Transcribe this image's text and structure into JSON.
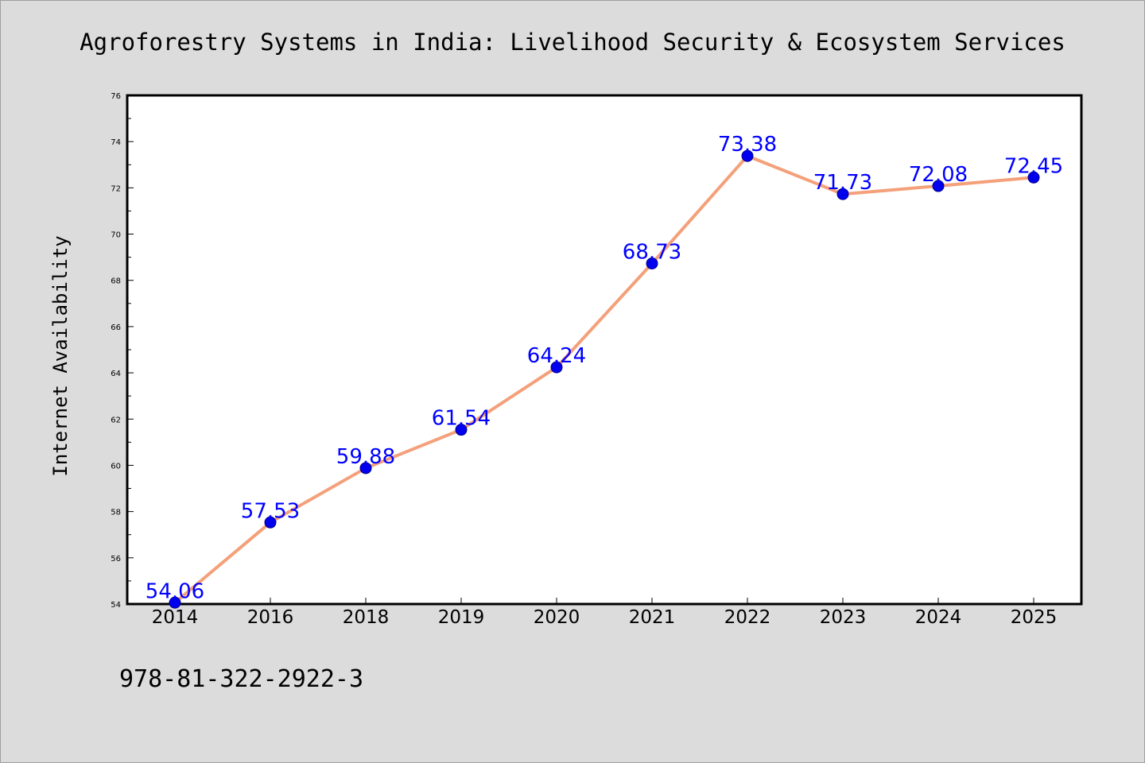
{
  "chart_data": {
    "type": "line",
    "title": "Agroforestry Systems in India: Livelihood Security & Ecosystem Services",
    "xlabel": "",
    "ylabel": "Internet Availability",
    "categories": [
      "2014",
      "2016",
      "2018",
      "2019",
      "2020",
      "2021",
      "2022",
      "2023",
      "2024",
      "2025"
    ],
    "series": [
      {
        "values": [
          54.06,
          57.53,
          59.88,
          61.54,
          64.24,
          68.73,
          73.38,
          71.73,
          72.08,
          72.45
        ],
        "line_color": "#f4a07a",
        "marker_color": "#0000ee"
      }
    ],
    "data_labels": [
      "54.06",
      "57.53",
      "59.88",
      "61.54",
      "64.24",
      "68.73",
      "73.38",
      "71.73",
      "72.08",
      "72.45"
    ],
    "ylim": [
      54,
      76
    ],
    "yticks": [
      54,
      56,
      58,
      60,
      62,
      64,
      66,
      68,
      70,
      72,
      74,
      76
    ],
    "grid": false,
    "legend": "none"
  },
  "footer_text": "978-81-322-2922-3",
  "colors": {
    "background": "#dcdcdc",
    "plot_background": "#ffffff",
    "label": "#0000ff"
  }
}
